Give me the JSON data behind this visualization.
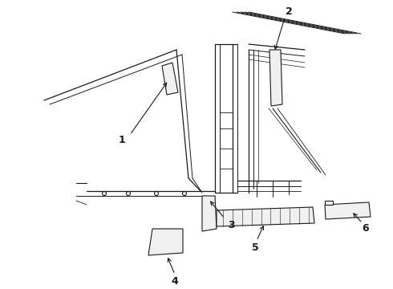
{
  "bg_color": "#ffffff",
  "line_color": "#1a1a1a",
  "lw": 0.8,
  "figsize": [
    4.9,
    3.6
  ],
  "dpi": 100,
  "label_fontsize": 9
}
